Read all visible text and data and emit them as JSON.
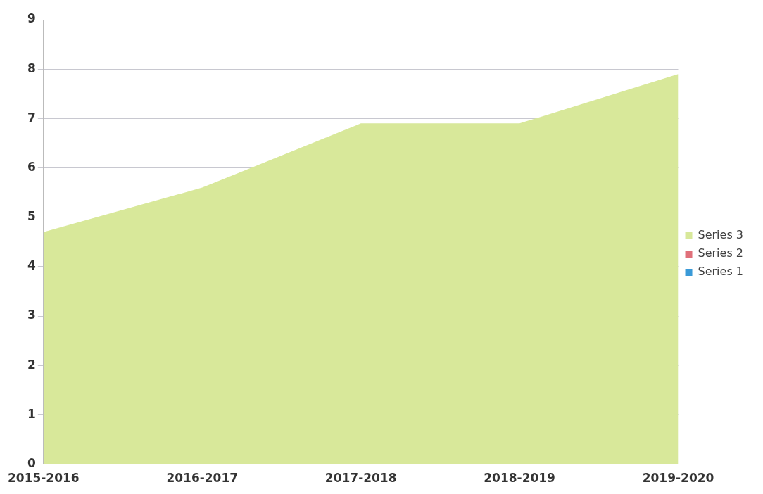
{
  "chart_data": {
    "type": "area",
    "categories": [
      "2015-2016",
      "2016-2017",
      "2017-2018",
      "2018-2019",
      "2019-2020"
    ],
    "series": [
      {
        "name": "Series 3",
        "color": "#d8e89a",
        "values": [
          4.7,
          5.6,
          6.9,
          6.9,
          7.9
        ]
      },
      {
        "name": "Series 2",
        "color": "#e0707a",
        "values": [
          null,
          null,
          null,
          null,
          null
        ]
      },
      {
        "name": "Series 1",
        "color": "#3a9ad8",
        "values": [
          null,
          null,
          null,
          null,
          null
        ]
      }
    ],
    "ylim": [
      0,
      9
    ],
    "yticks": [
      0,
      1,
      2,
      3,
      4,
      5,
      6,
      7,
      8,
      9
    ],
    "grid": "y",
    "legend": "right"
  }
}
